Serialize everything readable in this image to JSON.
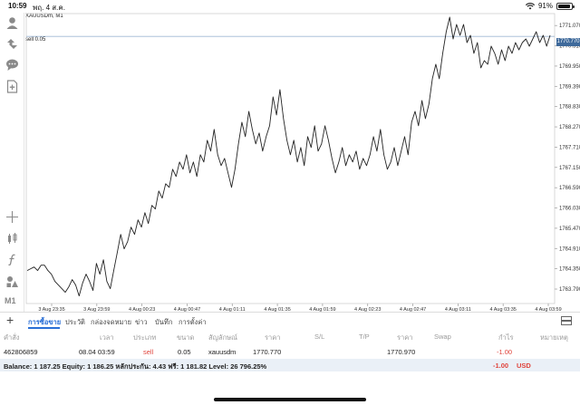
{
  "status_bar": {
    "time": "10:59",
    "date": "พฤ. 4 ส.ค.",
    "battery": "91%",
    "battery_level": 0.91
  },
  "toolbar": {
    "icons": [
      "account-icon",
      "trade-icon",
      "chat-icon",
      "new-document-icon",
      "crosshair-icon",
      "indicators-icon",
      "function-icon",
      "objects-icon"
    ],
    "timeframe": "M1"
  },
  "chart": {
    "symbol_label": "XAUUSDm, M1",
    "sell_line_label": "sell 0.05",
    "current_price_tag": "1770.770",
    "colors": {
      "line": "#222222",
      "grid": "#e9e9e9",
      "sell_line": "#9fb7d3",
      "tag": "#3f6a9b"
    }
  },
  "chart_data": {
    "type": "line",
    "ylim": [
      1763.39,
      1771.4
    ],
    "y_ticks": [
      "1771.070",
      "1770.510",
      "1769.950",
      "1769.390",
      "1768.830",
      "1768.270",
      "1767.710",
      "1767.150",
      "1766.590",
      "1766.030",
      "1765.470",
      "1764.910",
      "1764.350",
      "1763.790"
    ],
    "x_ticks": [
      "3 Aug 23:35",
      "3 Aug 23:59",
      "4 Aug 00:23",
      "4 Aug 00:47",
      "4 Aug 01:11",
      "4 Aug 01:35",
      "4 Aug 01:59",
      "4 Aug 02:23",
      "4 Aug 02:47",
      "4 Aug 03:11",
      "4 Aug 03:35",
      "4 Aug 03:59"
    ],
    "sell_price": 1770.77,
    "series": [
      {
        "values": [
          1764.3,
          1764.35,
          1764.4,
          1764.3,
          1764.45,
          1764.45,
          1764.3,
          1764.2,
          1764.0,
          1763.9,
          1763.8,
          1763.7,
          1763.85,
          1764.05,
          1763.9,
          1763.6,
          1763.95,
          1764.2,
          1764.0,
          1763.75,
          1764.5,
          1764.2,
          1764.6,
          1764.0,
          1763.8,
          1764.3,
          1764.8,
          1765.3,
          1764.9,
          1765.1,
          1765.5,
          1765.3,
          1765.7,
          1765.5,
          1765.9,
          1765.6,
          1766.1,
          1766.0,
          1766.5,
          1766.3,
          1766.7,
          1766.6,
          1767.1,
          1766.9,
          1767.3,
          1767.1,
          1767.5,
          1767.0,
          1767.3,
          1766.9,
          1767.5,
          1767.3,
          1767.9,
          1767.6,
          1768.2,
          1767.5,
          1767.2,
          1767.4,
          1767.0,
          1766.6,
          1767.1,
          1767.8,
          1768.4,
          1768.0,
          1768.7,
          1768.2,
          1767.8,
          1768.1,
          1767.6,
          1768.0,
          1768.3,
          1769.1,
          1768.6,
          1769.3,
          1768.5,
          1767.9,
          1767.5,
          1767.9,
          1767.3,
          1767.7,
          1767.2,
          1768.0,
          1767.7,
          1768.3,
          1767.6,
          1767.8,
          1768.3,
          1767.9,
          1767.4,
          1767.0,
          1767.3,
          1767.7,
          1767.2,
          1767.5,
          1767.3,
          1767.6,
          1767.1,
          1767.4,
          1767.2,
          1767.5,
          1768.0,
          1767.6,
          1768.2,
          1767.5,
          1767.1,
          1767.3,
          1767.7,
          1767.2,
          1767.6,
          1768.0,
          1767.5,
          1768.4,
          1768.7,
          1768.3,
          1769.0,
          1768.5,
          1768.9,
          1769.6,
          1770.0,
          1769.6,
          1770.3,
          1770.9,
          1771.3,
          1770.7,
          1771.1,
          1770.8,
          1771.1,
          1770.6,
          1770.8,
          1770.3,
          1770.6,
          1769.9,
          1770.1,
          1770.0,
          1770.5,
          1770.3,
          1770.0,
          1770.4,
          1770.1,
          1770.5,
          1770.3,
          1770.6,
          1770.4,
          1770.6,
          1770.7,
          1770.5,
          1770.7,
          1770.9,
          1770.6,
          1770.8,
          1770.5,
          1770.8
        ]
      }
    ]
  },
  "tabs": {
    "items": [
      "การซื้อขาย",
      "ประวัติ",
      "กล่องจดหมาย",
      "ข่าว",
      "บันทึก",
      "การตั้งค่า"
    ]
  },
  "table": {
    "headers": [
      "คำสั่ง",
      "เวลา",
      "ประเภท",
      "ขนาด",
      "สัญลักษณ์",
      "ราคา",
      "S/L",
      "T/P",
      "ราคา",
      "Swap",
      "กำไร",
      "หมายเหตุ"
    ],
    "rows": [
      {
        "order": "462806859",
        "time": "08.04 03:59",
        "type": "sell",
        "volume": "0.05",
        "symbol": "xauusdm",
        "open_price": "1770.770",
        "sl": "",
        "tp": "",
        "price": "1770.970",
        "swap": "",
        "profit": "-1.00",
        "comment": ""
      }
    ]
  },
  "footer": {
    "balance_text": "Balance: 1 187.25 Equity: 1 186.25 หลักประกัน: 4.43 ฟรี: 1 181.82 Level: 26 796.25%",
    "profit": "-1.00",
    "currency": "USD"
  }
}
